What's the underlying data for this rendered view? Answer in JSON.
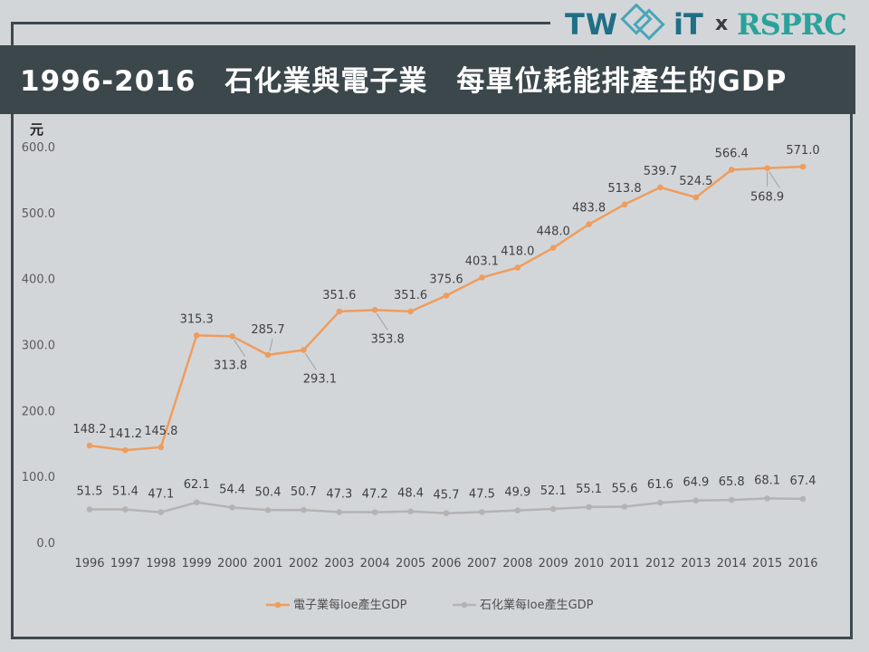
{
  "logo": {
    "left": "TW",
    "right_part": "iT",
    "x": "x",
    "partner": "RSPRC"
  },
  "title": "1996-2016　石化業與電子業　每單位耗能排產生的GDP",
  "colors": {
    "title_bg": "#3c474c",
    "background": "#d3d6d9",
    "series1": "#ee9d5e",
    "series2": "#b3b3b3"
  },
  "chart_data": {
    "type": "line",
    "ylabel": "元",
    "ylim": [
      0,
      600
    ],
    "yticks": [
      "600.0",
      "500.0",
      "400.0",
      "300.0",
      "200.0",
      "100.0",
      "0.0"
    ],
    "x": [
      "1996",
      "1997",
      "1998",
      "1999",
      "2000",
      "2001",
      "2002",
      "2003",
      "2004",
      "2005",
      "2006",
      "2007",
      "2008",
      "2009",
      "2010",
      "2011",
      "2012",
      "2013",
      "2014",
      "2015",
      "2016"
    ],
    "series": [
      {
        "name": "電子業每loe產生GDP",
        "color": "#ee9d5e",
        "values": [
          148.2,
          141.2,
          145.8,
          315.3,
          313.8,
          285.7,
          293.1,
          351.6,
          353.8,
          351.6,
          375.6,
          403.1,
          418.0,
          448.0,
          483.8,
          513.8,
          539.7,
          524.5,
          566.4,
          568.9,
          571.0
        ],
        "labels": [
          "148.2",
          "141.2",
          "145.8",
          "315.3",
          "313.8",
          "285.7",
          "293.1",
          "351.6",
          "353.8",
          "351.6",
          "375.6",
          "403.1",
          "418.0",
          "448.0",
          "483.8",
          "513.8",
          "539.7",
          "524.5",
          "566.4",
          "568.9",
          "571.0"
        ]
      },
      {
        "name": "石化業每loe產生GDP",
        "color": "#b3b3b3",
        "values": [
          51.5,
          51.4,
          47.1,
          62.1,
          54.4,
          50.4,
          50.7,
          47.3,
          47.2,
          48.4,
          45.7,
          47.5,
          49.9,
          52.1,
          55.1,
          55.6,
          61.6,
          64.9,
          65.8,
          68.1,
          67.4
        ],
        "labels": [
          "51.5",
          "51.4",
          "47.1",
          "62.1",
          "54.4",
          "50.4",
          "50.7",
          "47.3",
          "47.2",
          "48.4",
          "45.7",
          "47.5",
          "49.9",
          "52.1",
          "55.1",
          "55.6",
          "61.6",
          "64.9",
          "65.8",
          "68.1",
          "67.4"
        ]
      }
    ],
    "grid": false,
    "legend": "bottom"
  }
}
